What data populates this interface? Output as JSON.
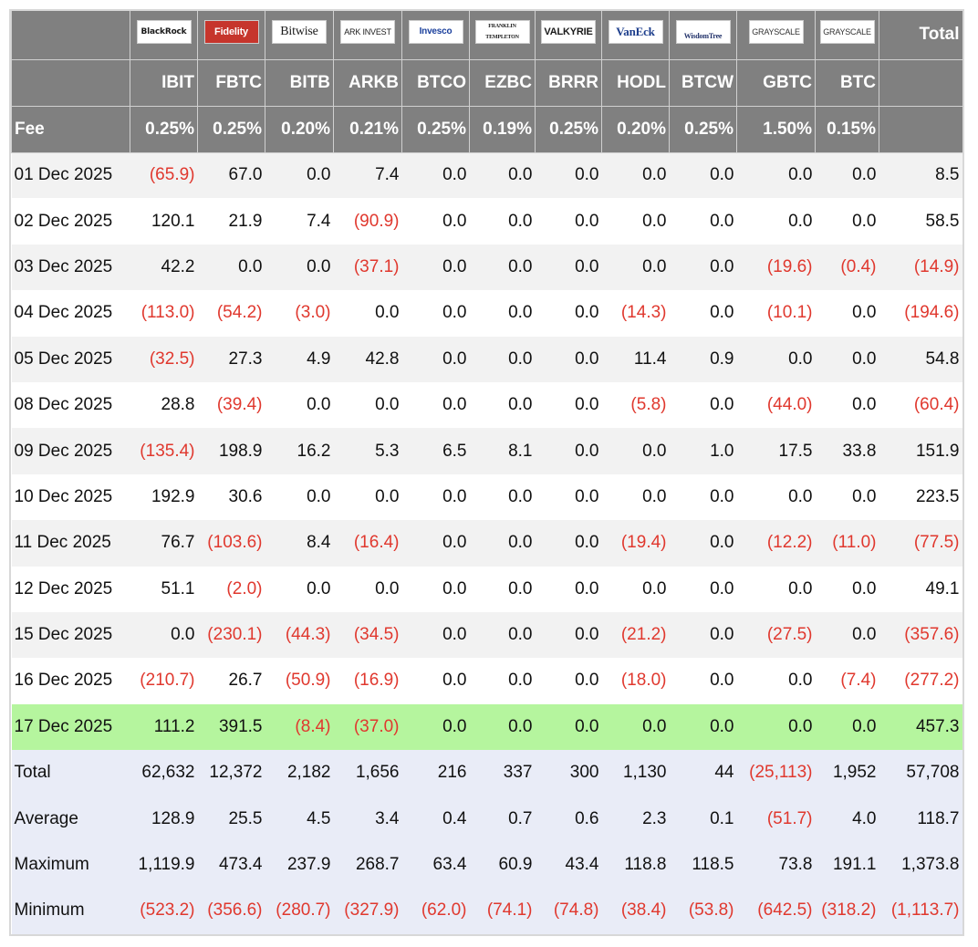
{
  "header": {
    "logos": [
      "BlackRock",
      "Fidelity",
      "Bitwise",
      "ARK INVEST",
      "Invesco",
      "FRANKLIN TEMPLETON",
      "VALKYRIE",
      "VanEck",
      "WisdomTree",
      "GRAYSCALE",
      "GRAYSCALE"
    ],
    "total_label": "Total",
    "tickers": [
      "IBIT",
      "FBTC",
      "BITB",
      "ARKB",
      "BTCO",
      "EZBC",
      "BRRR",
      "HODL",
      "BTCW",
      "GBTC",
      "BTC"
    ],
    "fee_label": "Fee",
    "fees": [
      "0.25%",
      "0.25%",
      "0.20%",
      "0.21%",
      "0.25%",
      "0.19%",
      "0.25%",
      "0.20%",
      "0.25%",
      "1.50%",
      "0.15%"
    ]
  },
  "rows": [
    {
      "date": "01 Dec 2025",
      "values": [
        "(65.9)",
        "67.0",
        "0.0",
        "7.4",
        "0.0",
        "0.0",
        "0.0",
        "0.0",
        "0.0",
        "0.0",
        "0.0",
        "8.5"
      ]
    },
    {
      "date": "02 Dec 2025",
      "values": [
        "120.1",
        "21.9",
        "7.4",
        "(90.9)",
        "0.0",
        "0.0",
        "0.0",
        "0.0",
        "0.0",
        "0.0",
        "0.0",
        "58.5"
      ]
    },
    {
      "date": "03 Dec 2025",
      "values": [
        "42.2",
        "0.0",
        "0.0",
        "(37.1)",
        "0.0",
        "0.0",
        "0.0",
        "0.0",
        "0.0",
        "(19.6)",
        "(0.4)",
        "(14.9)"
      ]
    },
    {
      "date": "04 Dec 2025",
      "values": [
        "(113.0)",
        "(54.2)",
        "(3.0)",
        "0.0",
        "0.0",
        "0.0",
        "0.0",
        "(14.3)",
        "0.0",
        "(10.1)",
        "0.0",
        "(194.6)"
      ]
    },
    {
      "date": "05 Dec 2025",
      "values": [
        "(32.5)",
        "27.3",
        "4.9",
        "42.8",
        "0.0",
        "0.0",
        "0.0",
        "11.4",
        "0.9",
        "0.0",
        "0.0",
        "54.8"
      ]
    },
    {
      "date": "08 Dec 2025",
      "values": [
        "28.8",
        "(39.4)",
        "0.0",
        "0.0",
        "0.0",
        "0.0",
        "0.0",
        "(5.8)",
        "0.0",
        "(44.0)",
        "0.0",
        "(60.4)"
      ]
    },
    {
      "date": "09 Dec 2025",
      "values": [
        "(135.4)",
        "198.9",
        "16.2",
        "5.3",
        "6.5",
        "8.1",
        "0.0",
        "0.0",
        "1.0",
        "17.5",
        "33.8",
        "151.9"
      ]
    },
    {
      "date": "10 Dec 2025",
      "values": [
        "192.9",
        "30.6",
        "0.0",
        "0.0",
        "0.0",
        "0.0",
        "0.0",
        "0.0",
        "0.0",
        "0.0",
        "0.0",
        "223.5"
      ]
    },
    {
      "date": "11 Dec 2025",
      "values": [
        "76.7",
        "(103.6)",
        "8.4",
        "(16.4)",
        "0.0",
        "0.0",
        "0.0",
        "(19.4)",
        "0.0",
        "(12.2)",
        "(11.0)",
        "(77.5)"
      ]
    },
    {
      "date": "12 Dec 2025",
      "values": [
        "51.1",
        "(2.0)",
        "0.0",
        "0.0",
        "0.0",
        "0.0",
        "0.0",
        "0.0",
        "0.0",
        "0.0",
        "0.0",
        "49.1"
      ]
    },
    {
      "date": "15 Dec 2025",
      "values": [
        "0.0",
        "(230.1)",
        "(44.3)",
        "(34.5)",
        "0.0",
        "0.0",
        "0.0",
        "(21.2)",
        "0.0",
        "(27.5)",
        "0.0",
        "(357.6)"
      ]
    },
    {
      "date": "16 Dec 2025",
      "values": [
        "(210.7)",
        "26.7",
        "(50.9)",
        "(16.9)",
        "0.0",
        "0.0",
        "0.0",
        "(18.0)",
        "0.0",
        "0.0",
        "(7.4)",
        "(277.2)"
      ]
    },
    {
      "date": "17 Dec 2025",
      "highlight": true,
      "values": [
        "111.2",
        "391.5",
        "(8.4)",
        "(37.0)",
        "0.0",
        "0.0",
        "0.0",
        "0.0",
        "0.0",
        "0.0",
        "0.0",
        "457.3"
      ]
    }
  ],
  "summary": [
    {
      "label": "Total",
      "values": [
        "62,632",
        "12,372",
        "2,182",
        "1,656",
        "216",
        "337",
        "300",
        "1,130",
        "44",
        "(25,113)",
        "1,952",
        "57,708"
      ]
    },
    {
      "label": "Average",
      "values": [
        "128.9",
        "25.5",
        "4.5",
        "3.4",
        "0.4",
        "0.7",
        "0.6",
        "2.3",
        "0.1",
        "(51.7)",
        "4.0",
        "118.7"
      ]
    },
    {
      "label": "Maximum",
      "values": [
        "1,119.9",
        "473.4",
        "237.9",
        "268.7",
        "63.4",
        "60.9",
        "43.4",
        "118.8",
        "118.5",
        "73.8",
        "191.1",
        "1,373.8"
      ]
    },
    {
      "label": "Minimum",
      "values": [
        "(523.2)",
        "(356.6)",
        "(280.7)",
        "(327.9)",
        "(62.0)",
        "(74.1)",
        "(74.8)",
        "(38.4)",
        "(53.8)",
        "(642.5)",
        "(318.2)",
        "(1,113.7)"
      ]
    }
  ]
}
